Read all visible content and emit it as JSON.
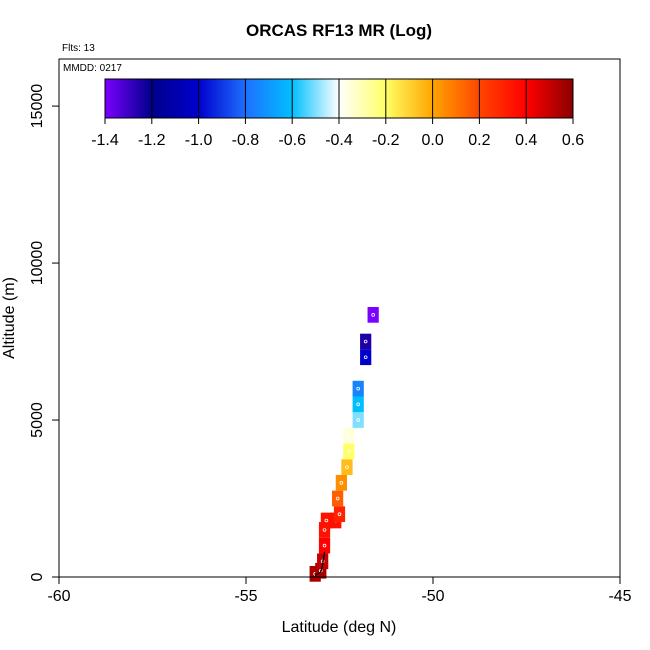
{
  "chart_data": {
    "type": "heatmap",
    "title": "ORCAS RF13 MR (Log)",
    "flights_label": "Flts: 13",
    "date_label": "MMDD: 0217",
    "xlabel": "Latitude (deg N)",
    "ylabel": "Altitude (m)",
    "xlim": [
      -60,
      -45
    ],
    "ylim": [
      0,
      16500
    ],
    "x_ticks": [
      -60,
      -55,
      -50,
      -45
    ],
    "y_ticks": [
      0,
      5000,
      10000,
      15000
    ],
    "grid": false,
    "colorbar": {
      "range": [
        -1.4,
        0.6
      ],
      "ticks": [
        "-1.4",
        "-1.2",
        "-1.0",
        "-0.8",
        "-0.6",
        "-0.4",
        "-0.2",
        "0.0",
        "0.2",
        "0.4",
        "0.6"
      ],
      "stops": [
        "#7a00ff",
        "#00008b",
        "#0000cd",
        "#1e6fff",
        "#00bfff",
        "#ffffff",
        "#ffff66",
        "#ffa500",
        "#ff4500",
        "#ff0000",
        "#8b0000"
      ]
    },
    "cells": [
      {
        "lat": -53.15,
        "alt": 100,
        "value": 0.55
      },
      {
        "lat": -53.0,
        "alt": 200,
        "value": 0.55
      },
      {
        "lat": -52.95,
        "alt": 500,
        "value": 0.5
      },
      {
        "lat": -52.9,
        "alt": 1000,
        "value": 0.4
      },
      {
        "lat": -52.9,
        "alt": 1500,
        "value": 0.35
      },
      {
        "lat": -52.85,
        "alt": 1800,
        "value": 0.35
      },
      {
        "lat": -52.6,
        "alt": 1800,
        "value": 0.35
      },
      {
        "lat": -52.5,
        "alt": 2000,
        "value": 0.3
      },
      {
        "lat": -52.55,
        "alt": 2500,
        "value": 0.15
      },
      {
        "lat": -52.45,
        "alt": 3000,
        "value": 0.05
      },
      {
        "lat": -52.3,
        "alt": 3500,
        "value": -0.05
      },
      {
        "lat": -52.25,
        "alt": 4000,
        "value": -0.2
      },
      {
        "lat": -52.25,
        "alt": 4500,
        "value": -0.35
      },
      {
        "lat": -52.0,
        "alt": 5000,
        "value": -0.5
      },
      {
        "lat": -52.0,
        "alt": 5500,
        "value": -0.6
      },
      {
        "lat": -52.0,
        "alt": 6000,
        "value": -0.75
      },
      {
        "lat": -51.8,
        "alt": 7000,
        "value": -1.0
      },
      {
        "lat": -51.8,
        "alt": 7500,
        "value": -1.25
      },
      {
        "lat": -51.6,
        "alt": 8350,
        "value": -1.4
      }
    ]
  }
}
